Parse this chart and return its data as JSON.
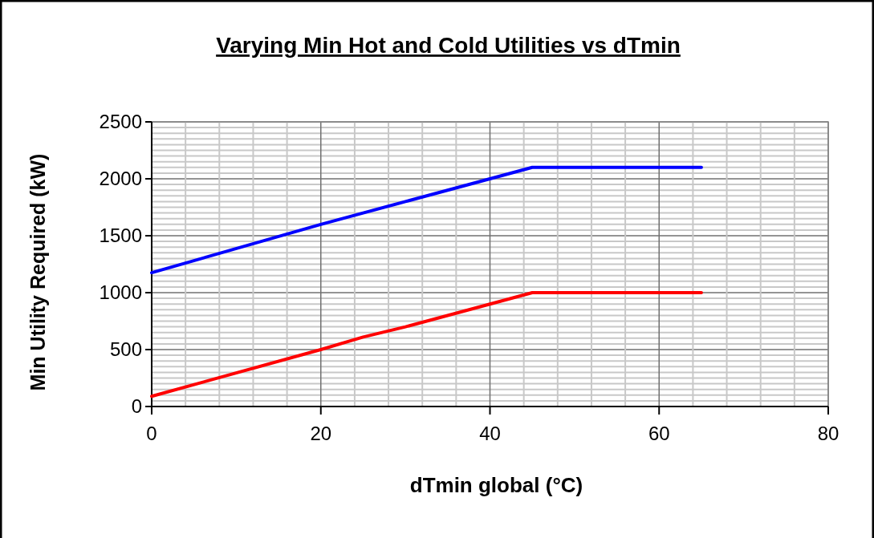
{
  "chart_data": {
    "type": "line",
    "title": "Varying Min Hot and Cold Utilities vs dTmin",
    "xlabel": "dTmin global (°C)",
    "ylabel": "Min Utility Required (kW)",
    "series": [
      {
        "color": "#0000ff",
        "x": [
          0,
          20,
          25,
          30,
          40,
          45,
          65
        ],
        "values": [
          1175,
          1600,
          1700,
          1800,
          2000,
          2100,
          2100
        ]
      },
      {
        "color": "#ff0000",
        "x": [
          0,
          20,
          25,
          30,
          40,
          45,
          65
        ],
        "values": [
          90,
          500,
          610,
          700,
          900,
          1000,
          1000
        ]
      }
    ],
    "xlim": [
      0,
      80
    ],
    "ylim": [
      0,
      2500
    ],
    "xticks": [
      0,
      {
        "value": 4,
        "label": null
      },
      {
        "value": 8,
        "label": null
      },
      {
        "value": 12,
        "label": null
      },
      {
        "value": 16,
        "label": null
      },
      20,
      {
        "value": 24,
        "label": null
      },
      {
        "value": 28,
        "label": null
      },
      {
        "value": 32,
        "label": null
      },
      {
        "value": 36,
        "label": null
      },
      40,
      {
        "value": 44,
        "label": null
      },
      {
        "value": 48,
        "label": null
      },
      {
        "value": 52,
        "label": null
      },
      {
        "value": 56,
        "label": null
      },
      60,
      {
        "value": 64,
        "label": null
      },
      {
        "value": 68,
        "label": null
      },
      {
        "value": 72,
        "label": null
      },
      {
        "value": 76,
        "label": null
      },
      80
    ],
    "yticks": [
      0,
      {
        "value": 50,
        "label": null
      },
      {
        "value": 100,
        "label": null
      },
      {
        "value": 150,
        "label": null
      },
      {
        "value": 200,
        "label": null
      },
      {
        "value": 250,
        "label": null
      },
      {
        "value": 300,
        "label": null
      },
      {
        "value": 350,
        "label": null
      },
      {
        "value": 400,
        "label": null
      },
      {
        "value": 450,
        "label": null
      },
      500,
      {
        "value": 550,
        "label": null
      },
      {
        "value": 600,
        "label": null
      },
      {
        "value": 650,
        "label": null
      },
      {
        "value": 700,
        "label": null
      },
      {
        "value": 750,
        "label": null
      },
      {
        "value": 800,
        "label": null
      },
      {
        "value": 850,
        "label": null
      },
      {
        "value": 900,
        "label": null
      },
      {
        "value": 950,
        "label": null
      },
      1000,
      {
        "value": 1050,
        "label": null
      },
      {
        "value": 1100,
        "label": null
      },
      {
        "value": 1150,
        "label": null
      },
      {
        "value": 1200,
        "label": null
      },
      {
        "value": 1250,
        "label": null
      },
      {
        "value": 1300,
        "label": null
      },
      {
        "value": 1350,
        "label": null
      },
      {
        "value": 1400,
        "label": null
      },
      {
        "value": 1450,
        "label": null
      },
      1500,
      {
        "value": 1550,
        "label": null
      },
      {
        "value": 1600,
        "label": null
      },
      {
        "value": 1650,
        "label": null
      },
      {
        "value": 1700,
        "label": null
      },
      {
        "value": 1750,
        "label": null
      },
      {
        "value": 1800,
        "label": null
      },
      {
        "value": 1850,
        "label": null
      },
      {
        "value": 1900,
        "label": null
      },
      {
        "value": 1950,
        "label": null
      },
      2000,
      {
        "value": 2050,
        "label": null
      },
      {
        "value": 2100,
        "label": null
      },
      {
        "value": 2150,
        "label": null
      },
      {
        "value": 2200,
        "label": null
      },
      {
        "value": 2250,
        "label": null
      },
      {
        "value": 2300,
        "label": null
      },
      {
        "value": 2350,
        "label": null
      },
      {
        "value": 2400,
        "label": null
      },
      {
        "value": 2450,
        "label": null
      },
      2500
    ],
    "grid": true,
    "line_style": "solid",
    "marker": "none"
  }
}
